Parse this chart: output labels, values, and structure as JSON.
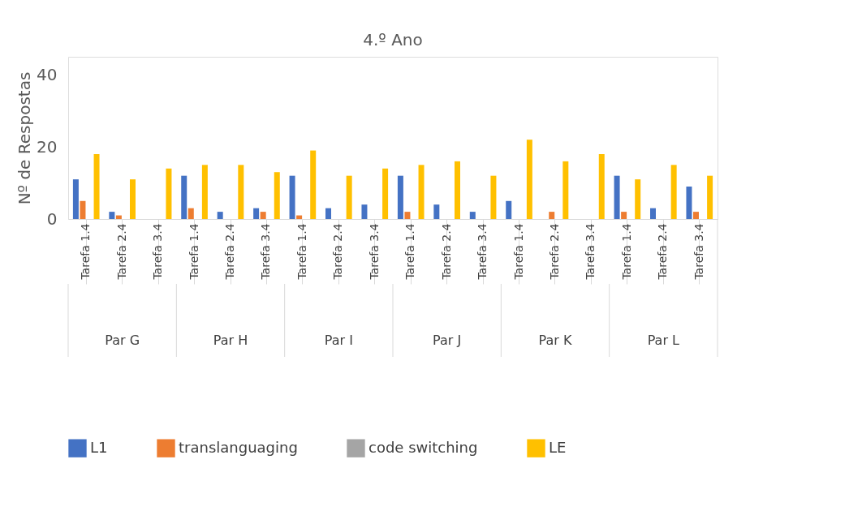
{
  "chart_data": {
    "type": "bar",
    "title": "4.º Ano",
    "ylabel": "Nº de Respostas",
    "categories": [
      "Tarefa 1.4",
      "Tarefa 2.4",
      "Tarefa 3.4",
      "Tarefa 1.4",
      "Tarefa 2.4",
      "Tarefa 3.4",
      "Tarefa 1.4",
      "Tarefa 2.4",
      "Tarefa 3.4",
      "Tarefa 1.4",
      "Tarefa 2.4",
      "Tarefa 3.4",
      "Tarefa 1.4",
      "Tarefa 2.4",
      "Tarefa 3.4",
      "Tarefa 1.4",
      "Tarefa 2.4",
      "Tarefa 3.4"
    ],
    "series": [
      {
        "name": "L1",
        "color": "#4472c4",
        "values": [
          11,
          2,
          0,
          12,
          2,
          3,
          12,
          3,
          4,
          12,
          4,
          2,
          5,
          0,
          0,
          12,
          3,
          9
        ]
      },
      {
        "name": "translanguaging",
        "color": "#ed7d31",
        "values": [
          5,
          1,
          0,
          3,
          0,
          2,
          1,
          0,
          0,
          2,
          0,
          0,
          0,
          2,
          0,
          2,
          0,
          2
        ]
      },
      {
        "name": "code switching",
        "color": "#a5a5a5",
        "values": [
          0,
          0,
          0,
          0,
          0,
          0,
          0,
          0,
          0,
          0,
          0,
          0,
          0,
          0,
          0,
          0,
          0,
          0
        ]
      },
      {
        "name": "LE",
        "color": "#ffc000",
        "values": [
          18,
          11,
          14,
          15,
          15,
          13,
          19,
          12,
          14,
          15,
          16,
          12,
          22,
          16,
          18,
          11,
          15,
          12
        ]
      }
    ],
    "annotations": [
      "Par G",
      "Par H",
      "Par I",
      "Par J",
      "Par K",
      "Par L"
    ],
    "ylim": [
      0,
      45
    ],
    "yticks": [
      0,
      20,
      40
    ],
    "grid": false,
    "legend": "bottom"
  }
}
